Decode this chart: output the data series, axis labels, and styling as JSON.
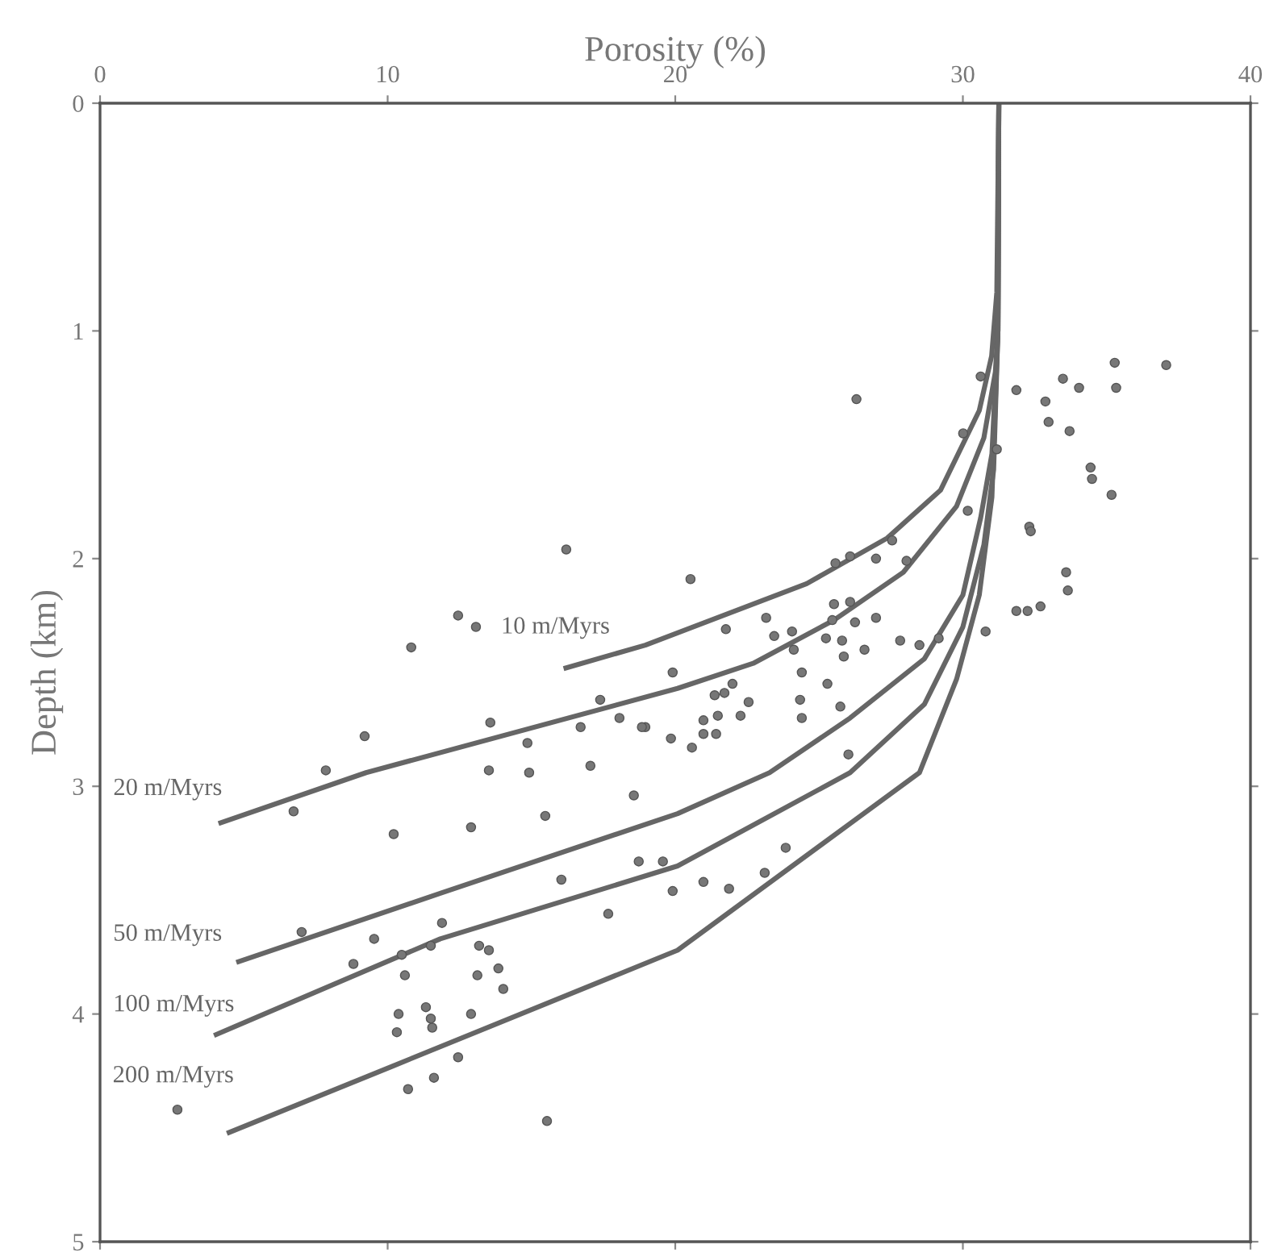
{
  "chart_data": {
    "type": "line",
    "xlabel": "Porosity (%)",
    "ylabel": "Depth (km)",
    "xlim": [
      0,
      40
    ],
    "ylim": [
      5,
      0
    ],
    "xticks": [
      0,
      10,
      20,
      30,
      40
    ],
    "yticks": [
      0,
      1,
      2,
      3,
      4,
      5
    ],
    "grid": false,
    "legend": false,
    "line_style": "solid",
    "series": [
      {
        "name": "10 m/Myrs",
        "color": "#666666",
        "marker": "none",
        "x": [
          31.25,
          31.18,
          31.0,
          30.57,
          29.22,
          27.37,
          24.57,
          18.96,
          16.2
        ],
        "values": [
          0,
          0.83,
          1.11,
          1.35,
          1.7,
          1.91,
          2.11,
          2.38,
          2.48
        ]
      },
      {
        "name": "20 m/Myrs",
        "color": "#666666",
        "marker": "none",
        "x": [
          31.25,
          31.22,
          31.13,
          30.73,
          29.78,
          27.93,
          25.52,
          22.71,
          20.08,
          9.25,
          4.2
        ],
        "values": [
          0,
          1.0,
          1.18,
          1.47,
          1.77,
          2.06,
          2.27,
          2.46,
          2.57,
          2.94,
          3.16
        ]
      },
      {
        "name": "50 m/Myrs",
        "color": "#666666",
        "marker": "none",
        "x": [
          31.25,
          31.22,
          31.01,
          30.62,
          30.0,
          28.66,
          26.08,
          23.28,
          20.08,
          11.83,
          4.82
        ],
        "values": [
          0,
          1.0,
          1.54,
          1.82,
          2.16,
          2.44,
          2.7,
          2.94,
          3.12,
          3.47,
          3.77
        ]
      },
      {
        "name": "100 m/Myrs",
        "color": "#666666",
        "marker": "none",
        "x": [
          31.25,
          31.22,
          31.07,
          30.73,
          30.0,
          28.66,
          26.08,
          20.08,
          11.83,
          4.04
        ],
        "values": [
          0,
          1.0,
          1.61,
          1.94,
          2.3,
          2.64,
          2.94,
          3.35,
          3.67,
          4.09
        ]
      },
      {
        "name": "200 m/Myrs",
        "color": "#666666",
        "marker": "none",
        "x": [
          31.25,
          31.22,
          31.01,
          30.57,
          29.78,
          28.49,
          20.08,
          10.15,
          4.49
        ],
        "values": [
          0,
          1.0,
          1.73,
          2.16,
          2.53,
          2.94,
          3.72,
          4.23,
          4.52
        ]
      },
      {
        "type": "scatter",
        "color": "#777777",
        "marker": "circle",
        "x": [
          35.28,
          37.07,
          35.33,
          33.48,
          34.04,
          31.86,
          32.87,
          32.98,
          33.71,
          34.44,
          34.49,
          35.17,
          32.31,
          32.36,
          33.59,
          33.65,
          31.86,
          32.25,
          32.7,
          31.18,
          30.62,
          30.01,
          30.17,
          30.79,
          29.16,
          28.49,
          27.82,
          28.04,
          27.54,
          26.98,
          26.08,
          25.57,
          26.3,
          20.53,
          21.76,
          23.16,
          23.44,
          24.06,
          24.12,
          25.24,
          25.52,
          26.08,
          25.46,
          26.25,
          26.98,
          25.8,
          26.58,
          25.86,
          24.4,
          25.29,
          24.34,
          24.4,
          25.74,
          26.02,
          19.91,
          18.96,
          19.85,
          20.58,
          20.98,
          20.98,
          21.42,
          21.48,
          21.37,
          21.71,
          21.99,
          22.55,
          22.27,
          16.21,
          12.45,
          13.07,
          10.82,
          9.2,
          7.85,
          13.57,
          14.86,
          16.71,
          17.39,
          18.06,
          18.84,
          13.52,
          14.92,
          17.05,
          18.56,
          6.73,
          10.21,
          12.9,
          15.48,
          18.73,
          19.57,
          19.91,
          16.04,
          17.67,
          11.89,
          9.53,
          7.01,
          8.81,
          10.49,
          11.5,
          13.18,
          13.52,
          10.6,
          13.12,
          13.85,
          14.02,
          10.38,
          11.33,
          11.5,
          11.55,
          10.32,
          12.9,
          12.45,
          11.61,
          10.71,
          15.54,
          2.69,
          23.84,
          23.11,
          21.87,
          20.98
        ],
        "values": [
          1.14,
          1.15,
          1.25,
          1.21,
          1.25,
          1.26,
          1.31,
          1.4,
          1.44,
          1.6,
          1.65,
          1.72,
          1.86,
          1.88,
          2.06,
          2.14,
          2.23,
          2.23,
          2.21,
          1.52,
          1.2,
          1.45,
          1.79,
          2.32,
          2.35,
          2.38,
          2.36,
          2.01,
          1.92,
          2.0,
          1.99,
          2.02,
          1.3,
          2.09,
          2.31,
          2.26,
          2.34,
          2.32,
          2.4,
          2.35,
          2.2,
          2.19,
          2.27,
          2.28,
          2.26,
          2.36,
          2.4,
          2.43,
          2.5,
          2.55,
          2.62,
          2.7,
          2.65,
          2.86,
          2.5,
          2.74,
          2.79,
          2.83,
          2.71,
          2.77,
          2.77,
          2.69,
          2.6,
          2.59,
          2.55,
          2.63,
          2.69,
          1.96,
          2.25,
          2.3,
          2.39,
          2.78,
          2.93,
          2.72,
          2.81,
          2.74,
          2.62,
          2.7,
          2.74,
          2.93,
          2.94,
          2.91,
          3.04,
          3.11,
          3.21,
          3.18,
          3.13,
          3.33,
          3.33,
          3.46,
          3.41,
          3.56,
          3.6,
          3.67,
          3.64,
          3.78,
          3.74,
          3.7,
          3.7,
          3.72,
          3.83,
          3.83,
          3.8,
          3.89,
          4.0,
          3.97,
          4.02,
          4.06,
          4.08,
          4.0,
          4.19,
          4.28,
          4.33,
          4.47,
          4.42,
          3.27,
          3.38,
          3.45,
          3.42
        ]
      }
    ]
  }
}
